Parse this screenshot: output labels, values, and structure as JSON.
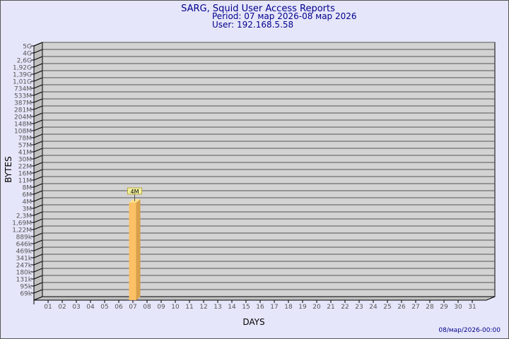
{
  "chart_data": {
    "type": "bar",
    "title": "SARG, Squid User Access Reports",
    "subtitle_period": "Period: 07 мар 2026-08 мар 2026",
    "subtitle_user": "User: 192.168.5.58",
    "xlabel": "DAYS",
    "ylabel": "BYTES",
    "y_scale": "log",
    "grid": true,
    "y_ticks": [
      "69k",
      "95k",
      "131k",
      "180k",
      "247k",
      "341k",
      "469k",
      "646k",
      "889k",
      "1,22M",
      "1,69M",
      "2,3M",
      "3M",
      "4M",
      "6M",
      "8M",
      "11M",
      "16M",
      "22M",
      "30M",
      "41M",
      "57M",
      "78M",
      "108M",
      "148M",
      "204M",
      "281M",
      "387M",
      "533M",
      "734M",
      "1,01G",
      "1,39G",
      "1,92G",
      "2,6G",
      "4G",
      "5G"
    ],
    "y_tick_values": [
      69000,
      95000,
      131000,
      180000,
      247000,
      341000,
      469000,
      646000,
      889000,
      1220000,
      1690000,
      2300000,
      3000000,
      4000000,
      6000000,
      8000000,
      11000000,
      16000000,
      22000000,
      30000000,
      41000000,
      57000000,
      78000000,
      108000000,
      148000000,
      204000000,
      281000000,
      387000000,
      533000000,
      734000000,
      1010000000,
      1390000000,
      1920000000,
      2600000000,
      4000000000,
      5000000000
    ],
    "categories": [
      "01",
      "02",
      "03",
      "04",
      "05",
      "06",
      "07",
      "08",
      "09",
      "10",
      "11",
      "12",
      "13",
      "14",
      "15",
      "16",
      "17",
      "18",
      "19",
      "20",
      "21",
      "22",
      "23",
      "24",
      "25",
      "26",
      "27",
      "28",
      "29",
      "30",
      "31"
    ],
    "bars": [
      {
        "category": "07",
        "value": 4000000,
        "label": "4M"
      }
    ],
    "colors": {
      "background": "#e6e6fa",
      "plot": "#d3d3d3",
      "bar_front": "#fdc066",
      "bar_side": "#d9a04a",
      "bar_top": "#ffe08a",
      "title": "#00008b",
      "label_box": "#f0f0a0"
    }
  },
  "footer": {
    "timestamp": "08/мар/2026-00:00"
  }
}
